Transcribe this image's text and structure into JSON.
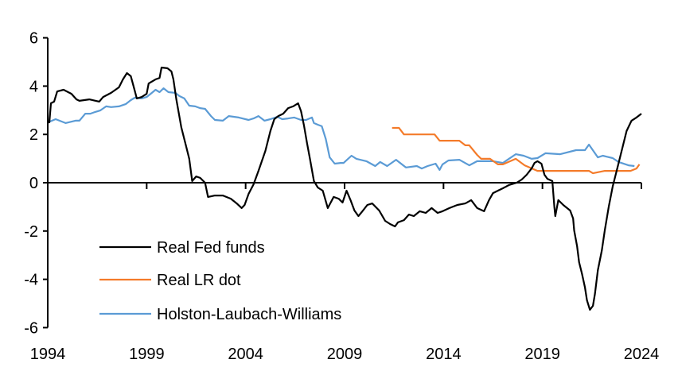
{
  "chart_data": {
    "type": "line",
    "title": "",
    "xlabel": "",
    "ylabel": "",
    "xlim": [
      1994,
      2024
    ],
    "ylim": [
      -6,
      6
    ],
    "x_ticks": [
      "1994",
      "1999",
      "2004",
      "2009",
      "2014",
      "2019",
      "2024"
    ],
    "y_ticks": [
      "6",
      "4",
      "2",
      "0",
      "-2",
      "-4",
      "-6"
    ],
    "grid": false,
    "legend_position": "bottom-left",
    "series": [
      {
        "name": "Real Fed funds",
        "color": "#000000",
        "points": [
          [
            1994.0,
            2.5
          ],
          [
            1994.08,
            2.5
          ],
          [
            1994.16,
            3.29
          ],
          [
            1994.32,
            3.36
          ],
          [
            1994.48,
            3.78
          ],
          [
            1994.8,
            3.85
          ],
          [
            1995.2,
            3.68
          ],
          [
            1995.45,
            3.45
          ],
          [
            1995.6,
            3.39
          ],
          [
            1996.1,
            3.45
          ],
          [
            1996.6,
            3.36
          ],
          [
            1996.8,
            3.55
          ],
          [
            1997.2,
            3.72
          ],
          [
            1997.6,
            3.95
          ],
          [
            1997.8,
            4.28
          ],
          [
            1998.0,
            4.54
          ],
          [
            1998.2,
            4.41
          ],
          [
            1998.35,
            3.95
          ],
          [
            1998.5,
            3.49
          ],
          [
            1998.75,
            3.55
          ],
          [
            1999.0,
            3.68
          ],
          [
            1999.1,
            4.11
          ],
          [
            1999.45,
            4.28
          ],
          [
            1999.65,
            4.34
          ],
          [
            1999.75,
            4.77
          ],
          [
            2000.05,
            4.74
          ],
          [
            2000.25,
            4.61
          ],
          [
            2000.35,
            4.28
          ],
          [
            2000.5,
            3.45
          ],
          [
            2000.75,
            2.3
          ],
          [
            2001.0,
            1.48
          ],
          [
            2001.15,
            0.99
          ],
          [
            2001.3,
            0.07
          ],
          [
            2001.5,
            0.26
          ],
          [
            2001.7,
            0.2
          ],
          [
            2001.95,
            0.0
          ],
          [
            2002.1,
            -0.59
          ],
          [
            2002.45,
            -0.53
          ],
          [
            2002.85,
            -0.53
          ],
          [
            2003.25,
            -0.66
          ],
          [
            2003.55,
            -0.86
          ],
          [
            2003.8,
            -1.05
          ],
          [
            2003.95,
            -0.92
          ],
          [
            2004.15,
            -0.46
          ],
          [
            2004.4,
            -0.07
          ],
          [
            2004.65,
            0.49
          ],
          [
            2005.0,
            1.32
          ],
          [
            2005.25,
            2.14
          ],
          [
            2005.45,
            2.63
          ],
          [
            2005.65,
            2.76
          ],
          [
            2005.9,
            2.86
          ],
          [
            2006.15,
            3.09
          ],
          [
            2006.4,
            3.16
          ],
          [
            2006.65,
            3.29
          ],
          [
            2006.8,
            2.96
          ],
          [
            2006.95,
            2.37
          ],
          [
            2007.1,
            1.64
          ],
          [
            2007.25,
            0.99
          ],
          [
            2007.45,
            0.07
          ],
          [
            2007.65,
            -0.2
          ],
          [
            2007.9,
            -0.33
          ],
          [
            2008.15,
            -1.05
          ],
          [
            2008.45,
            -0.59
          ],
          [
            2008.7,
            -0.66
          ],
          [
            2008.9,
            -0.82
          ],
          [
            2009.1,
            -0.33
          ],
          [
            2009.3,
            -0.72
          ],
          [
            2009.5,
            -1.15
          ],
          [
            2009.7,
            -1.38
          ],
          [
            2009.9,
            -1.18
          ],
          [
            2010.15,
            -0.92
          ],
          [
            2010.4,
            -0.86
          ],
          [
            2010.75,
            -1.15
          ],
          [
            2011.05,
            -1.58
          ],
          [
            2011.3,
            -1.71
          ],
          [
            2011.55,
            -1.81
          ],
          [
            2011.7,
            -1.64
          ],
          [
            2012.0,
            -1.55
          ],
          [
            2012.25,
            -1.32
          ],
          [
            2012.5,
            -1.38
          ],
          [
            2012.8,
            -1.18
          ],
          [
            2013.1,
            -1.25
          ],
          [
            2013.4,
            -1.05
          ],
          [
            2013.7,
            -1.25
          ],
          [
            2013.95,
            -1.18
          ],
          [
            2014.3,
            -1.05
          ],
          [
            2014.7,
            -0.92
          ],
          [
            2015.1,
            -0.86
          ],
          [
            2015.4,
            -0.72
          ],
          [
            2015.7,
            -1.05
          ],
          [
            2016.05,
            -1.18
          ],
          [
            2016.3,
            -0.72
          ],
          [
            2016.5,
            -0.43
          ],
          [
            2016.75,
            -0.33
          ],
          [
            2017.0,
            -0.23
          ],
          [
            2017.3,
            -0.1
          ],
          [
            2017.7,
            0.0
          ],
          [
            2017.95,
            0.13
          ],
          [
            2018.2,
            0.33
          ],
          [
            2018.45,
            0.59
          ],
          [
            2018.6,
            0.82
          ],
          [
            2018.75,
            0.89
          ],
          [
            2018.95,
            0.79
          ],
          [
            2019.1,
            0.33
          ],
          [
            2019.25,
            0.16
          ],
          [
            2019.5,
            0.07
          ],
          [
            2019.6,
            -0.99
          ],
          [
            2019.65,
            -1.38
          ],
          [
            2019.8,
            -0.72
          ],
          [
            2020.05,
            -0.92
          ],
          [
            2020.4,
            -1.15
          ],
          [
            2020.55,
            -1.48
          ],
          [
            2020.6,
            -1.97
          ],
          [
            2020.75,
            -2.63
          ],
          [
            2020.85,
            -3.29
          ],
          [
            2021.0,
            -3.78
          ],
          [
            2021.15,
            -4.34
          ],
          [
            2021.25,
            -4.87
          ],
          [
            2021.4,
            -5.26
          ],
          [
            2021.55,
            -5.1
          ],
          [
            2021.65,
            -4.61
          ],
          [
            2021.8,
            -3.62
          ],
          [
            2022.0,
            -2.8
          ],
          [
            2022.15,
            -1.97
          ],
          [
            2022.35,
            -0.99
          ],
          [
            2022.55,
            -0.16
          ],
          [
            2022.8,
            0.66
          ],
          [
            2023.05,
            1.48
          ],
          [
            2023.25,
            2.14
          ],
          [
            2023.5,
            2.57
          ],
          [
            2023.75,
            2.7
          ],
          [
            2024.0,
            2.86
          ]
        ]
      },
      {
        "name": "Real LR dot",
        "color": "#F47B2A",
        "points": [
          [
            2011.4,
            2.27
          ],
          [
            2011.75,
            2.27
          ],
          [
            2012.0,
            2.0
          ],
          [
            2013.55,
            2.0
          ],
          [
            2013.8,
            1.74
          ],
          [
            2014.8,
            1.74
          ],
          [
            2015.1,
            1.55
          ],
          [
            2015.3,
            1.55
          ],
          [
            2015.7,
            1.15
          ],
          [
            2015.9,
            0.99
          ],
          [
            2016.35,
            0.99
          ],
          [
            2016.75,
            0.76
          ],
          [
            2017.0,
            0.76
          ],
          [
            2017.65,
            0.99
          ],
          [
            2018.1,
            0.72
          ],
          [
            2018.75,
            0.49
          ],
          [
            2021.35,
            0.49
          ],
          [
            2021.55,
            0.39
          ],
          [
            2022.15,
            0.49
          ],
          [
            2023.45,
            0.49
          ],
          [
            2023.75,
            0.59
          ],
          [
            2023.9,
            0.76
          ]
        ]
      },
      {
        "name": "Holston-Laubach-Williams",
        "color": "#5B9BD5",
        "points": [
          [
            1994.0,
            2.5
          ],
          [
            1994.1,
            2.53
          ],
          [
            1994.4,
            2.63
          ],
          [
            1994.9,
            2.47
          ],
          [
            1995.4,
            2.57
          ],
          [
            1995.6,
            2.57
          ],
          [
            1995.9,
            2.86
          ],
          [
            1996.15,
            2.86
          ],
          [
            1996.4,
            2.93
          ],
          [
            1996.65,
            2.99
          ],
          [
            1996.95,
            3.16
          ],
          [
            1997.2,
            3.13
          ],
          [
            1997.6,
            3.16
          ],
          [
            1997.95,
            3.26
          ],
          [
            1998.2,
            3.42
          ],
          [
            1998.4,
            3.52
          ],
          [
            1998.75,
            3.49
          ],
          [
            1999.0,
            3.55
          ],
          [
            1999.2,
            3.68
          ],
          [
            1999.45,
            3.85
          ],
          [
            1999.65,
            3.75
          ],
          [
            1999.85,
            3.91
          ],
          [
            2000.1,
            3.75
          ],
          [
            2000.45,
            3.72
          ],
          [
            2000.65,
            3.59
          ],
          [
            2000.9,
            3.49
          ],
          [
            2001.15,
            3.19
          ],
          [
            2001.45,
            3.16
          ],
          [
            2001.7,
            3.09
          ],
          [
            2001.95,
            3.06
          ],
          [
            2002.25,
            2.76
          ],
          [
            2002.45,
            2.6
          ],
          [
            2002.85,
            2.57
          ],
          [
            2003.15,
            2.76
          ],
          [
            2003.65,
            2.7
          ],
          [
            2004.15,
            2.6
          ],
          [
            2004.4,
            2.66
          ],
          [
            2004.65,
            2.76
          ],
          [
            2004.95,
            2.57
          ],
          [
            2005.25,
            2.63
          ],
          [
            2005.6,
            2.73
          ],
          [
            2005.85,
            2.63
          ],
          [
            2006.15,
            2.66
          ],
          [
            2006.45,
            2.7
          ],
          [
            2006.8,
            2.6
          ],
          [
            2007.05,
            2.6
          ],
          [
            2007.35,
            2.7
          ],
          [
            2007.45,
            2.47
          ],
          [
            2007.65,
            2.4
          ],
          [
            2007.85,
            2.34
          ],
          [
            2008.05,
            1.81
          ],
          [
            2008.25,
            1.05
          ],
          [
            2008.5,
            0.79
          ],
          [
            2008.8,
            0.82
          ],
          [
            2008.95,
            0.82
          ],
          [
            2009.35,
            1.12
          ],
          [
            2009.6,
            0.99
          ],
          [
            2010.1,
            0.89
          ],
          [
            2010.55,
            0.69
          ],
          [
            2010.8,
            0.86
          ],
          [
            2011.15,
            0.69
          ],
          [
            2011.6,
            0.95
          ],
          [
            2012.1,
            0.63
          ],
          [
            2012.65,
            0.69
          ],
          [
            2012.9,
            0.59
          ],
          [
            2013.2,
            0.69
          ],
          [
            2013.6,
            0.79
          ],
          [
            2013.8,
            0.53
          ],
          [
            2013.95,
            0.76
          ],
          [
            2014.25,
            0.92
          ],
          [
            2014.8,
            0.95
          ],
          [
            2015.3,
            0.72
          ],
          [
            2015.7,
            0.89
          ],
          [
            2016.5,
            0.89
          ],
          [
            2017.0,
            0.82
          ],
          [
            2017.65,
            1.18
          ],
          [
            2018.05,
            1.12
          ],
          [
            2018.45,
            0.99
          ],
          [
            2018.75,
            1.02
          ],
          [
            2019.15,
            1.22
          ],
          [
            2019.9,
            1.18
          ],
          [
            2020.7,
            1.35
          ],
          [
            2021.15,
            1.35
          ],
          [
            2021.35,
            1.58
          ],
          [
            2021.8,
            1.05
          ],
          [
            2022.05,
            1.12
          ],
          [
            2022.55,
            1.02
          ],
          [
            2022.85,
            0.86
          ],
          [
            2023.35,
            0.72
          ],
          [
            2023.65,
            0.69
          ]
        ]
      }
    ]
  }
}
